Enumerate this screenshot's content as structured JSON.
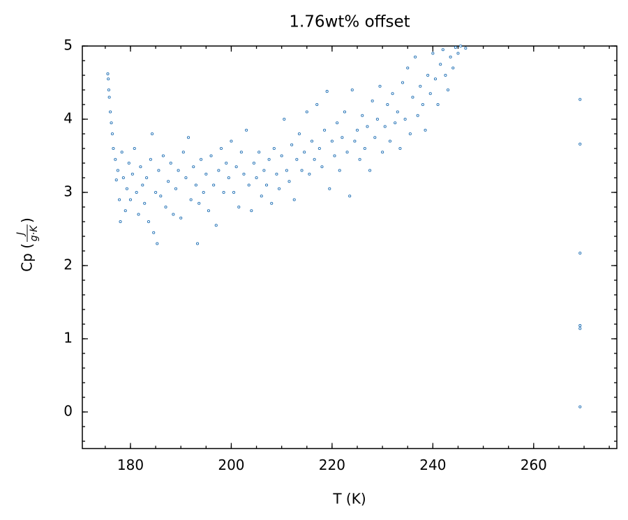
{
  "chart_data": {
    "type": "scatter",
    "title": "1.76wt% offset",
    "xlabel": "T (K)",
    "ylabel_prefix": "Cp (",
    "ylabel_numerator": "J",
    "ylabel_denominator": "g·K",
    "ylabel_suffix": ")",
    "xlim": [
      170.45,
      276.5
    ],
    "ylim": [
      -0.5,
      5
    ],
    "xticks": [
      180,
      200,
      220,
      240,
      260
    ],
    "yticks": [
      0,
      1,
      2,
      3,
      4,
      5
    ],
    "tick_direction": "in",
    "color": "#1f6fb4",
    "x": [
      175.5,
      175.6,
      175.7,
      175.8,
      176,
      176.2,
      176.4,
      176.6,
      177,
      177.2,
      177.5,
      177.8,
      178,
      178.3,
      178.6,
      179,
      179.3,
      179.7,
      180,
      180.4,
      180.8,
      181.2,
      181.6,
      182,
      182.4,
      182.8,
      183.2,
      183.6,
      184,
      184.3,
      184.6,
      185,
      185.3,
      185.6,
      186,
      186.5,
      187,
      187.5,
      188,
      188.5,
      189,
      189.5,
      190,
      190.5,
      191,
      191.5,
      192,
      192.5,
      193,
      193.3,
      193.6,
      194,
      194.5,
      195,
      195.5,
      196,
      196.5,
      197,
      197.5,
      198,
      198.5,
      199,
      199.5,
      200,
      200.5,
      201,
      201.5,
      202,
      202.5,
      203,
      203.5,
      204,
      204.5,
      205,
      205.5,
      206,
      206.5,
      207,
      207.5,
      208,
      208.5,
      209,
      209.5,
      210,
      210.5,
      211,
      211.5,
      212,
      212.5,
      213,
      213.5,
      214,
      214.5,
      215,
      215.5,
      216,
      216.5,
      217,
      217.5,
      218,
      218.5,
      219,
      219.5,
      220,
      220.5,
      221,
      221.5,
      222,
      222.5,
      223,
      223.5,
      224,
      224.5,
      225,
      225.5,
      226,
      226.5,
      227,
      227.5,
      228,
      228.5,
      229,
      229.5,
      230,
      230.5,
      231,
      231.5,
      232,
      232.5,
      233,
      233.5,
      234,
      234.5,
      235,
      235.5,
      236,
      236.5,
      237,
      237.5,
      238,
      238.5,
      239,
      239.5,
      240,
      240.5,
      241,
      241.5,
      242,
      242.5,
      243,
      243.5,
      244,
      244.5,
      245,
      245.5,
      246.5,
      269.2,
      269.2,
      269.2,
      269.2,
      269.2,
      269.2
    ],
    "y": [
      4.62,
      4.55,
      4.4,
      4.3,
      4.1,
      3.95,
      3.8,
      3.6,
      3.45,
      3.17,
      3.3,
      2.9,
      2.6,
      3.55,
      3.2,
      2.75,
      3.05,
      3.4,
      2.9,
      3.25,
      3.6,
      3.0,
      2.7,
      3.35,
      3.1,
      2.85,
      3.2,
      2.6,
      3.45,
      3.8,
      2.45,
      3.0,
      2.3,
      3.3,
      2.95,
      3.5,
      2.8,
      3.15,
      3.4,
      2.7,
      3.05,
      3.3,
      2.65,
      3.55,
      3.2,
      3.75,
      2.9,
      3.35,
      3.1,
      2.3,
      2.85,
      3.45,
      3.0,
      3.25,
      2.75,
      3.5,
      3.1,
      2.55,
      3.3,
      3.6,
      3.0,
      3.4,
      3.2,
      3.7,
      3.0,
      3.35,
      2.8,
      3.55,
      3.25,
      3.85,
      3.1,
      2.75,
      3.4,
      3.2,
      3.55,
      2.95,
      3.3,
      3.1,
      3.45,
      2.85,
      3.6,
      3.25,
      3.05,
      3.5,
      4.0,
      3.3,
      3.15,
      3.65,
      2.9,
      3.45,
      3.8,
      3.3,
      3.55,
      4.1,
      3.25,
      3.7,
      3.45,
      4.2,
      3.6,
      3.35,
      3.85,
      4.38,
      3.05,
      3.7,
      3.5,
      3.95,
      3.3,
      3.75,
      4.1,
      3.55,
      2.95,
      4.4,
      3.7,
      3.85,
      3.45,
      4.05,
      3.6,
      3.9,
      3.3,
      4.25,
      3.75,
      4.0,
      4.45,
      3.55,
      3.9,
      4.2,
      3.7,
      4.35,
      3.95,
      4.1,
      3.6,
      4.5,
      4.0,
      4.7,
      3.8,
      4.3,
      4.85,
      4.05,
      4.45,
      4.2,
      3.85,
      4.6,
      4.35,
      4.9,
      4.55,
      4.2,
      4.75,
      4.95,
      4.6,
      4.4,
      4.85,
      4.7,
      4.98,
      4.9,
      5.0,
      4.97,
      4.27,
      3.66,
      2.17,
      1.18,
      1.14,
      0.07
    ]
  }
}
